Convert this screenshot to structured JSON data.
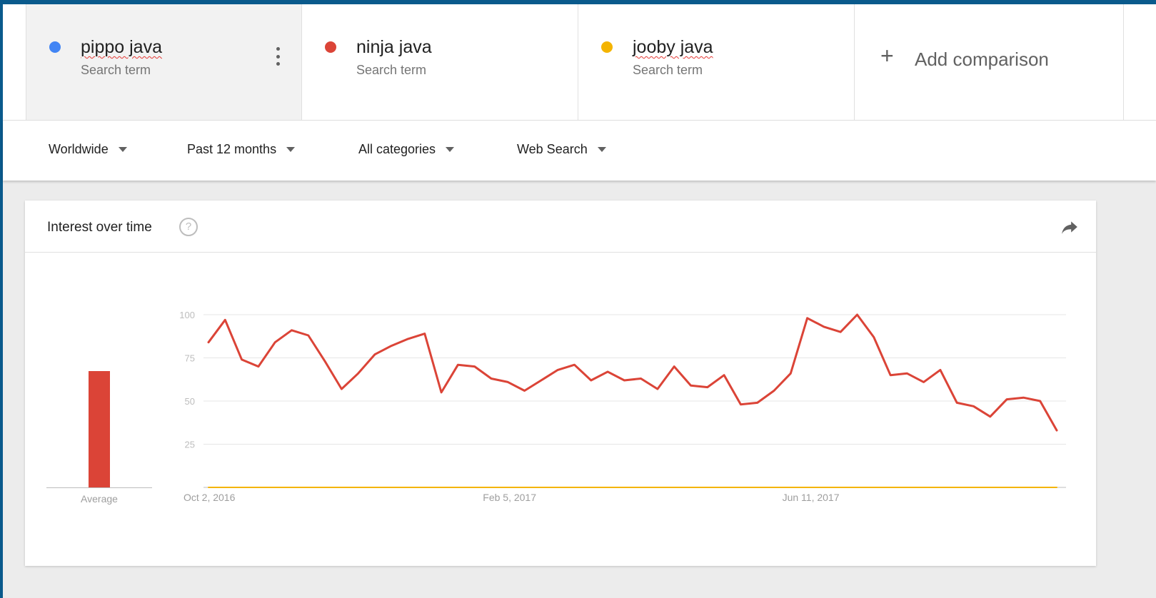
{
  "comparison": {
    "terms": [
      {
        "name": "pippo java",
        "subtitle": "Search term",
        "color": "#4285f4"
      },
      {
        "name": "ninja java",
        "subtitle": "Search term",
        "color": "#db4437"
      },
      {
        "name": "jooby java",
        "subtitle": "Search term",
        "color": "#f4b400"
      }
    ],
    "add_label": "Add comparison",
    "add_icon": "plus-icon",
    "more_icon": "more-vert-icon"
  },
  "filters": {
    "region": "Worldwide",
    "time": "Past 12 months",
    "category": "All categories",
    "search_type": "Web Search"
  },
  "card": {
    "title": "Interest over time",
    "help_icon": "help-icon",
    "help_glyph": "?",
    "share_icon": "share-icon"
  },
  "average": {
    "label": "Average",
    "values": [
      {
        "term": "ninja java",
        "value": 68,
        "color": "#db4437"
      }
    ]
  },
  "chart_data": {
    "type": "line",
    "title": "Interest over time",
    "xlabel": "",
    "ylabel": "",
    "ylim": [
      0,
      100
    ],
    "yticks": [
      25,
      50,
      75,
      100
    ],
    "grid": true,
    "x_tick_labels": [
      {
        "label": "Oct 2, 2016",
        "index": 0
      },
      {
        "label": "Feb 5, 2017",
        "index": 18
      },
      {
        "label": "Jun 11, 2017",
        "index": 36
      }
    ],
    "series": [
      {
        "name": "ninja java",
        "color": "#db4437",
        "values": [
          84,
          97,
          74,
          70,
          84,
          91,
          88,
          73,
          57,
          66,
          77,
          82,
          86,
          89,
          55,
          71,
          70,
          63,
          61,
          56,
          62,
          68,
          71,
          62,
          67,
          62,
          63,
          57,
          70,
          59,
          58,
          65,
          48,
          49,
          56,
          66,
          98,
          93,
          90,
          100,
          87,
          65,
          66,
          61,
          68,
          49,
          47,
          41,
          51,
          52,
          50,
          33
        ]
      },
      {
        "name": "jooby java",
        "color": "#f4b400",
        "values": [
          0,
          0,
          0,
          0,
          0,
          0,
          0,
          0,
          0,
          0,
          0,
          0,
          0,
          0,
          0,
          0,
          0,
          0,
          0,
          0,
          0,
          0,
          0,
          0,
          0,
          0,
          0,
          0,
          0,
          0,
          0,
          0,
          0,
          0,
          0,
          0,
          0,
          0,
          0,
          0,
          0,
          0,
          0,
          0,
          0,
          0,
          0,
          0,
          0,
          0,
          0,
          0
        ]
      }
    ]
  }
}
